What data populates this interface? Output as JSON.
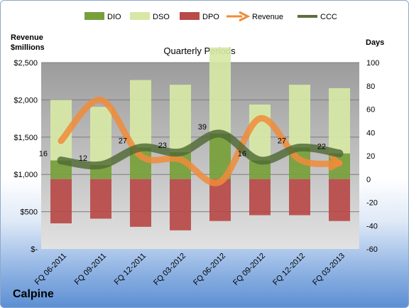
{
  "company": "Calpine",
  "legend": [
    {
      "name": "DIO",
      "color": "#77a03a",
      "kind": "box"
    },
    {
      "name": "DSO",
      "color": "#d7e8a6",
      "kind": "box"
    },
    {
      "name": "DPO",
      "color": "#b84a48",
      "kind": "box"
    },
    {
      "name": "Revenue",
      "color": "#f08c3a",
      "kind": "arrow"
    },
    {
      "name": "CCC",
      "color": "#5a7040",
      "kind": "line"
    }
  ],
  "chart_data": {
    "type": "bar",
    "title": "Quarterly Periods",
    "ylabel_left": "Revenue\n$millions",
    "ylabel_right": "Days",
    "categories": [
      "FQ 06-2011",
      "FQ 09-2011",
      "FQ 12-2011",
      "FQ 03-2012",
      "FQ 06-2012",
      "FQ 09-2012",
      "FQ 12-2012",
      "FQ 03-2013"
    ],
    "left_axis": {
      "ylim": [
        0,
        2500
      ],
      "ticks": [
        "$-",
        "$500",
        "$1,000",
        "$1,500",
        "$2,000",
        "$2,500"
      ],
      "tick_values": [
        0,
        500,
        1000,
        1500,
        2000,
        2500
      ]
    },
    "right_axis": {
      "ylim": [
        -60,
        100
      ],
      "ticks": [
        "-60",
        "-40",
        "-20",
        "0",
        "20",
        "40",
        "60",
        "80",
        "100"
      ],
      "tick_values": [
        -60,
        -40,
        -20,
        0,
        20,
        40,
        60,
        80,
        100
      ]
    },
    "series": [
      {
        "name": "DIO",
        "axis": "right",
        "values": [
          16,
          12,
          27,
          23,
          39,
          16,
          27,
          22
        ]
      },
      {
        "name": "DSO",
        "axis": "right",
        "values": [
          52,
          50,
          58,
          58,
          74,
          48,
          54,
          56
        ]
      },
      {
        "name": "DPO",
        "axis": "right",
        "values": [
          -38,
          -34,
          -41,
          -44,
          -36,
          -31,
          -31,
          -36
        ]
      },
      {
        "name": "Revenue",
        "axis": "left",
        "values": [
          1450,
          2000,
          1250,
          1200,
          900,
          1750,
          1200,
          1150
        ]
      },
      {
        "name": "CCC",
        "axis": "right",
        "values": [
          16,
          12,
          27,
          23,
          39,
          16,
          27,
          22
        ]
      }
    ],
    "ccc_labels": [
      "16",
      "12",
      "27",
      "23",
      "39",
      "16",
      "27",
      "22"
    ],
    "grid": true
  }
}
